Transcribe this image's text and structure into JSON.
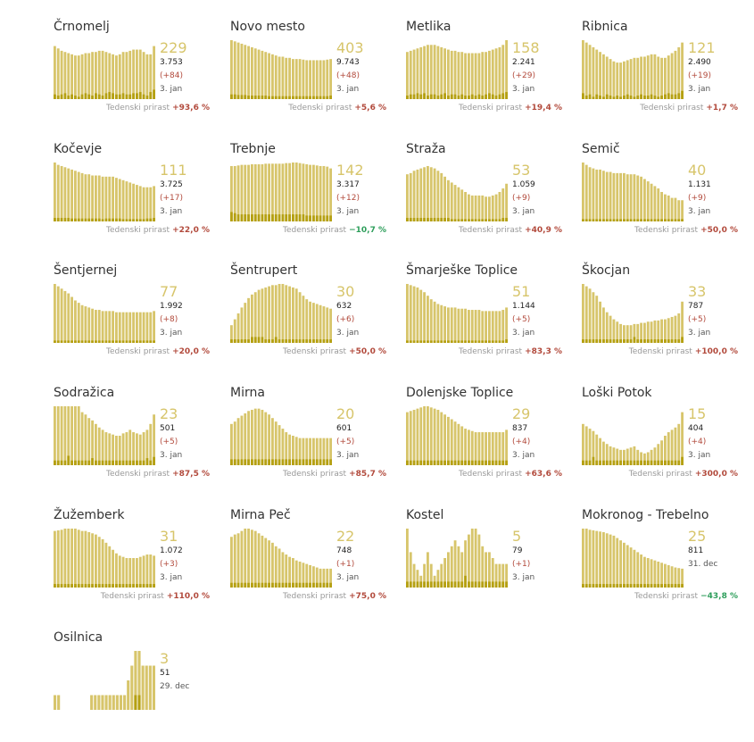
{
  "growth_label": "Tedenski prirast",
  "colors": {
    "bar_light": "#d7c56b",
    "bar_dark": "#b5a012",
    "value": "#d7c56b",
    "positive": "#b24a3c",
    "negative": "#2e9e5b"
  },
  "chart_data": [
    {
      "type": "bar",
      "title": "Črnomelj",
      "active": "229",
      "total": "3.753",
      "delta": "(+84)",
      "date": "3. jan",
      "growth": "+93,6 %",
      "values": [
        90,
        86,
        82,
        80,
        78,
        76,
        74,
        74,
        76,
        78,
        78,
        80,
        80,
        82,
        82,
        80,
        78,
        76,
        74,
        76,
        80,
        80,
        82,
        84,
        84,
        84,
        80,
        76,
        76,
        90
      ],
      "daily": [
        8,
        6,
        8,
        10,
        6,
        8,
        6,
        4,
        8,
        10,
        8,
        6,
        10,
        8,
        6,
        10,
        12,
        10,
        8,
        8,
        10,
        8,
        8,
        10,
        10,
        12,
        8,
        6,
        12,
        16
      ]
    },
    {
      "title": "Novo mesto",
      "active": "403",
      "total": "9.743",
      "delta": "(+48)",
      "date": "3. jan",
      "growth": "+5,6 %",
      "values": [
        100,
        98,
        96,
        94,
        92,
        90,
        88,
        86,
        84,
        82,
        80,
        78,
        76,
        74,
        72,
        72,
        70,
        70,
        68,
        68,
        68,
        67,
        66,
        66,
        66,
        66,
        66,
        66,
        67,
        68
      ],
      "daily": [
        8,
        8,
        7,
        7,
        7,
        6,
        6,
        6,
        6,
        6,
        6,
        5,
        5,
        5,
        5,
        5,
        5,
        5,
        5,
        5,
        5,
        5,
        5,
        5,
        5,
        5,
        5,
        5,
        5,
        6
      ]
    },
    {
      "title": "Metlika",
      "active": "158",
      "total": "2.241",
      "delta": "(+29)",
      "date": "3. jan",
      "growth": "+19,4 %",
      "values": [
        80,
        82,
        84,
        86,
        88,
        90,
        92,
        92,
        92,
        90,
        88,
        86,
        84,
        82,
        82,
        80,
        80,
        78,
        78,
        78,
        78,
        78,
        80,
        80,
        82,
        84,
        86,
        88,
        92,
        100
      ],
      "daily": [
        6,
        8,
        8,
        10,
        8,
        10,
        6,
        8,
        8,
        6,
        8,
        10,
        6,
        8,
        8,
        6,
        8,
        6,
        6,
        8,
        6,
        8,
        6,
        8,
        10,
        8,
        6,
        8,
        10,
        12
      ]
    },
    {
      "title": "Ribnica",
      "active": "121",
      "total": "2.490",
      "delta": "(+19)",
      "date": "3. jan",
      "growth": "+1,7 %",
      "values": [
        100,
        96,
        92,
        88,
        84,
        80,
        76,
        72,
        68,
        64,
        62,
        62,
        64,
        66,
        68,
        70,
        70,
        72,
        72,
        74,
        76,
        76,
        72,
        70,
        70,
        74,
        78,
        82,
        88,
        96
      ],
      "daily": [
        10,
        6,
        8,
        4,
        8,
        6,
        4,
        8,
        6,
        4,
        6,
        4,
        6,
        8,
        6,
        4,
        6,
        8,
        6,
        6,
        8,
        6,
        4,
        6,
        8,
        10,
        8,
        8,
        10,
        14
      ]
    },
    {
      "title": "Kočevje",
      "active": "111",
      "total": "3.725",
      "delta": "(+17)",
      "date": "3. jan",
      "growth": "+22,0 %",
      "values": [
        100,
        96,
        94,
        92,
        90,
        88,
        86,
        84,
        82,
        80,
        80,
        78,
        78,
        78,
        76,
        76,
        76,
        76,
        74,
        72,
        70,
        68,
        66,
        64,
        62,
        60,
        58,
        58,
        58,
        60
      ],
      "daily": [
        6,
        6,
        6,
        6,
        6,
        5,
        5,
        5,
        5,
        5,
        5,
        5,
        5,
        5,
        4,
        5,
        5,
        5,
        5,
        5,
        4,
        4,
        4,
        4,
        4,
        4,
        4,
        5,
        5,
        6
      ]
    },
    {
      "title": "Trebnje",
      "active": "142",
      "total": "3.317",
      "delta": "(+12)",
      "date": "3. jan",
      "growth": "−10,7 %",
      "growth_negative": true,
      "values": [
        94,
        94,
        95,
        96,
        96,
        96,
        97,
        97,
        97,
        97,
        98,
        98,
        98,
        98,
        98,
        98,
        99,
        99,
        100,
        100,
        99,
        98,
        97,
        96,
        96,
        95,
        94,
        94,
        93,
        90
      ],
      "daily": [
        16,
        14,
        12,
        12,
        12,
        12,
        12,
        12,
        12,
        12,
        12,
        12,
        12,
        12,
        12,
        12,
        12,
        12,
        12,
        12,
        12,
        12,
        10,
        10,
        10,
        10,
        10,
        10,
        10,
        10
      ]
    },
    {
      "title": "Straža",
      "active": "53",
      "total": "1.059",
      "delta": "(+9)",
      "date": "3. jan",
      "growth": "+40,9 %",
      "values": [
        80,
        82,
        86,
        88,
        90,
        92,
        94,
        92,
        90,
        86,
        82,
        76,
        70,
        66,
        62,
        58,
        54,
        50,
        46,
        44,
        44,
        44,
        44,
        42,
        42,
        44,
        46,
        50,
        56,
        64
      ],
      "daily": [
        6,
        6,
        6,
        6,
        6,
        6,
        6,
        6,
        6,
        6,
        6,
        6,
        6,
        4,
        4,
        4,
        4,
        4,
        4,
        4,
        4,
        4,
        4,
        4,
        4,
        4,
        4,
        4,
        6,
        6
      ]
    },
    {
      "title": "Semič",
      "active": "40",
      "total": "1.131",
      "delta": "(+9)",
      "date": "3. jan",
      "growth": "+50,0 %",
      "values": [
        100,
        96,
        92,
        90,
        88,
        88,
        86,
        84,
        84,
        82,
        82,
        82,
        82,
        80,
        80,
        80,
        78,
        76,
        72,
        68,
        64,
        60,
        56,
        50,
        46,
        44,
        40,
        40,
        36,
        36
      ],
      "daily": [
        4,
        4,
        4,
        4,
        4,
        4,
        4,
        4,
        4,
        4,
        4,
        4,
        4,
        4,
        4,
        4,
        4,
        4,
        4,
        4,
        4,
        4,
        4,
        4,
        4,
        4,
        4,
        4,
        4,
        4
      ]
    },
    {
      "title": "Šentjernej",
      "active": "77",
      "total": "1.992",
      "delta": "(+8)",
      "date": "3. jan",
      "growth": "+20,0 %",
      "values": [
        100,
        96,
        92,
        88,
        84,
        78,
        72,
        68,
        64,
        62,
        60,
        58,
        56,
        56,
        54,
        54,
        54,
        54,
        52,
        52,
        52,
        52,
        52,
        52,
        52,
        52,
        52,
        52,
        52,
        54
      ],
      "daily": [
        4,
        4,
        4,
        4,
        4,
        4,
        4,
        4,
        4,
        4,
        4,
        4,
        4,
        4,
        4,
        4,
        4,
        4,
        4,
        4,
        4,
        4,
        4,
        4,
        4,
        4,
        4,
        4,
        4,
        4
      ]
    },
    {
      "title": "Šentrupert",
      "active": "30",
      "total": "632",
      "delta": "(+6)",
      "date": "3. jan",
      "growth": "+50,0 %",
      "values": [
        30,
        40,
        50,
        60,
        68,
        76,
        82,
        86,
        90,
        92,
        94,
        96,
        98,
        98,
        100,
        100,
        98,
        96,
        94,
        92,
        86,
        80,
        74,
        70,
        68,
        66,
        64,
        62,
        60,
        58
      ],
      "daily": [
        6,
        6,
        6,
        6,
        6,
        6,
        10,
        10,
        10,
        10,
        6,
        6,
        6,
        10,
        6,
        6,
        6,
        6,
        6,
        6,
        6,
        6,
        6,
        6,
        6,
        6,
        6,
        6,
        6,
        6
      ]
    },
    {
      "title": "Šmarješke Toplice",
      "active": "51",
      "total": "1.144",
      "delta": "(+5)",
      "date": "3. jan",
      "growth": "+83,3 %",
      "values": [
        100,
        98,
        96,
        94,
        90,
        86,
        80,
        74,
        70,
        66,
        64,
        62,
        60,
        60,
        60,
        58,
        58,
        58,
        56,
        56,
        56,
        56,
        54,
        54,
        54,
        54,
        54,
        54,
        56,
        60
      ],
      "daily": [
        4,
        4,
        4,
        4,
        4,
        4,
        4,
        4,
        4,
        4,
        4,
        4,
        4,
        4,
        4,
        4,
        4,
        4,
        4,
        4,
        4,
        4,
        4,
        4,
        4,
        4,
        4,
        4,
        4,
        6
      ]
    },
    {
      "title": "Škocjan",
      "active": "33",
      "total": "787",
      "delta": "(+5)",
      "date": "3. jan",
      "growth": "+100,0 %",
      "values": [
        100,
        96,
        92,
        86,
        80,
        70,
        60,
        52,
        46,
        40,
        36,
        32,
        30,
        30,
        30,
        32,
        32,
        34,
        34,
        36,
        36,
        38,
        38,
        40,
        40,
        42,
        44,
        46,
        50,
        70
      ],
      "daily": [
        6,
        6,
        6,
        6,
        6,
        6,
        6,
        6,
        6,
        6,
        6,
        6,
        6,
        6,
        6,
        10,
        6,
        6,
        6,
        6,
        6,
        6,
        6,
        6,
        6,
        6,
        6,
        6,
        6,
        10
      ]
    },
    {
      "title": "Sodražica",
      "active": "23",
      "total": "501",
      "delta": "(+5)",
      "date": "3. jan",
      "growth": "+87,5 %",
      "values": [
        100,
        100,
        100,
        100,
        100,
        100,
        100,
        100,
        90,
        86,
        80,
        76,
        70,
        64,
        60,
        56,
        54,
        52,
        50,
        50,
        54,
        56,
        60,
        56,
        54,
        52,
        56,
        60,
        70,
        86
      ],
      "daily": [
        8,
        8,
        8,
        8,
        16,
        8,
        8,
        8,
        8,
        8,
        8,
        12,
        8,
        8,
        8,
        8,
        8,
        8,
        8,
        8,
        8,
        8,
        8,
        8,
        8,
        8,
        8,
        12,
        8,
        14
      ]
    },
    {
      "title": "Mirna",
      "active": "20",
      "total": "601",
      "delta": "(+5)",
      "date": "3. jan",
      "growth": "+85,7 %",
      "values": [
        70,
        74,
        80,
        84,
        88,
        92,
        94,
        96,
        96,
        94,
        90,
        86,
        80,
        74,
        68,
        62,
        56,
        52,
        50,
        48,
        46,
        46,
        46,
        46,
        46,
        46,
        46,
        46,
        46,
        46
      ],
      "daily": [
        10,
        10,
        10,
        10,
        10,
        10,
        10,
        10,
        10,
        10,
        10,
        10,
        10,
        10,
        10,
        10,
        10,
        10,
        10,
        10,
        10,
        10,
        10,
        10,
        10,
        10,
        10,
        10,
        10,
        10
      ]
    },
    {
      "title": "Dolenjske Toplice",
      "active": "29",
      "total": "837",
      "delta": "(+4)",
      "date": "3. jan",
      "growth": "+63,6 %",
      "values": [
        90,
        92,
        94,
        96,
        98,
        100,
        100,
        98,
        96,
        94,
        90,
        86,
        82,
        78,
        74,
        70,
        66,
        62,
        60,
        58,
        56,
        56,
        56,
        56,
        56,
        56,
        56,
        56,
        56,
        60
      ],
      "daily": [
        8,
        8,
        8,
        8,
        8,
        8,
        8,
        8,
        8,
        8,
        8,
        8,
        8,
        8,
        8,
        8,
        8,
        8,
        8,
        8,
        8,
        8,
        8,
        8,
        8,
        8,
        8,
        8,
        8,
        8
      ]
    },
    {
      "title": "Loški Potok",
      "active": "15",
      "total": "404",
      "delta": "(+4)",
      "date": "3. jan",
      "growth": "+300,0 %",
      "values": [
        70,
        66,
        62,
        58,
        52,
        46,
        40,
        36,
        32,
        30,
        28,
        26,
        26,
        28,
        30,
        32,
        26,
        22,
        20,
        22,
        26,
        30,
        36,
        42,
        50,
        56,
        60,
        64,
        70,
        90
      ],
      "daily": [
        8,
        8,
        8,
        14,
        8,
        8,
        8,
        8,
        8,
        8,
        8,
        8,
        8,
        8,
        8,
        8,
        8,
        8,
        8,
        8,
        8,
        8,
        8,
        8,
        8,
        8,
        8,
        8,
        8,
        14
      ]
    },
    {
      "title": "Žužemberk",
      "active": "31",
      "total": "1.072",
      "delta": "(+3)",
      "date": "3. jan",
      "growth": "+110,0 %",
      "values": [
        96,
        97,
        98,
        100,
        100,
        100,
        100,
        98,
        96,
        96,
        94,
        92,
        90,
        86,
        82,
        76,
        70,
        64,
        58,
        54,
        52,
        50,
        50,
        50,
        50,
        52,
        54,
        56,
        56,
        54
      ],
      "daily": [
        6,
        6,
        6,
        6,
        6,
        6,
        6,
        6,
        6,
        6,
        6,
        6,
        6,
        6,
        6,
        6,
        6,
        6,
        6,
        6,
        6,
        6,
        6,
        6,
        6,
        6,
        6,
        6,
        6,
        6
      ]
    },
    {
      "title": "Mirna Peč",
      "active": "22",
      "total": "748",
      "delta": "(+1)",
      "date": "3. jan",
      "growth": "+75,0 %",
      "values": [
        86,
        90,
        92,
        96,
        100,
        100,
        98,
        96,
        92,
        88,
        84,
        80,
        76,
        70,
        66,
        60,
        56,
        52,
        50,
        46,
        44,
        42,
        40,
        38,
        36,
        34,
        32,
        32,
        32,
        32
      ],
      "daily": [
        8,
        8,
        8,
        8,
        8,
        8,
        8,
        8,
        8,
        8,
        8,
        8,
        8,
        8,
        8,
        8,
        8,
        8,
        8,
        8,
        8,
        8,
        8,
        8,
        8,
        8,
        8,
        8,
        8,
        8
      ]
    },
    {
      "title": "Kostel",
      "active": "5",
      "total": "79",
      "delta": "(+1)",
      "date": "3. jan",
      "growth": "",
      "values": [
        100,
        60,
        40,
        30,
        20,
        40,
        60,
        40,
        20,
        30,
        40,
        50,
        60,
        70,
        80,
        70,
        60,
        80,
        90,
        100,
        100,
        90,
        70,
        60,
        60,
        50,
        40,
        40,
        40,
        40
      ],
      "daily": [
        10,
        10,
        10,
        10,
        10,
        10,
        10,
        10,
        10,
        10,
        10,
        10,
        10,
        10,
        10,
        10,
        10,
        20,
        10,
        10,
        10,
        10,
        10,
        10,
        10,
        10,
        10,
        10,
        10,
        10
      ]
    },
    {
      "title": "Mokronog - Trebelno",
      "active": "25",
      "total": "811",
      "delta": "",
      "date": "31. dec",
      "growth": "−43,8 %",
      "growth_negative": true,
      "values": [
        100,
        100,
        98,
        97,
        96,
        95,
        94,
        92,
        90,
        88,
        84,
        80,
        76,
        72,
        68,
        64,
        60,
        56,
        52,
        50,
        48,
        46,
        44,
        42,
        40,
        38,
        36,
        34,
        33,
        32
      ],
      "daily": [
        6,
        6,
        6,
        6,
        6,
        6,
        6,
        6,
        6,
        6,
        6,
        6,
        6,
        6,
        6,
        6,
        6,
        6,
        6,
        6,
        6,
        6,
        6,
        6,
        6,
        6,
        6,
        6,
        6,
        6
      ]
    },
    {
      "title": "Osilnica",
      "active": "3",
      "total": "51",
      "delta": "",
      "date": "29. dec",
      "growth": "",
      "values": [
        25,
        25,
        0,
        0,
        0,
        0,
        0,
        0,
        0,
        0,
        25,
        25,
        25,
        25,
        25,
        25,
        25,
        25,
        25,
        25,
        50,
        75,
        100,
        100,
        75,
        75,
        75,
        75
      ],
      "daily": [
        0,
        0,
        0,
        0,
        0,
        0,
        0,
        0,
        0,
        0,
        0,
        0,
        0,
        0,
        0,
        0,
        0,
        0,
        0,
        0,
        0,
        0,
        25,
        25,
        0,
        0,
        0,
        0
      ]
    }
  ]
}
